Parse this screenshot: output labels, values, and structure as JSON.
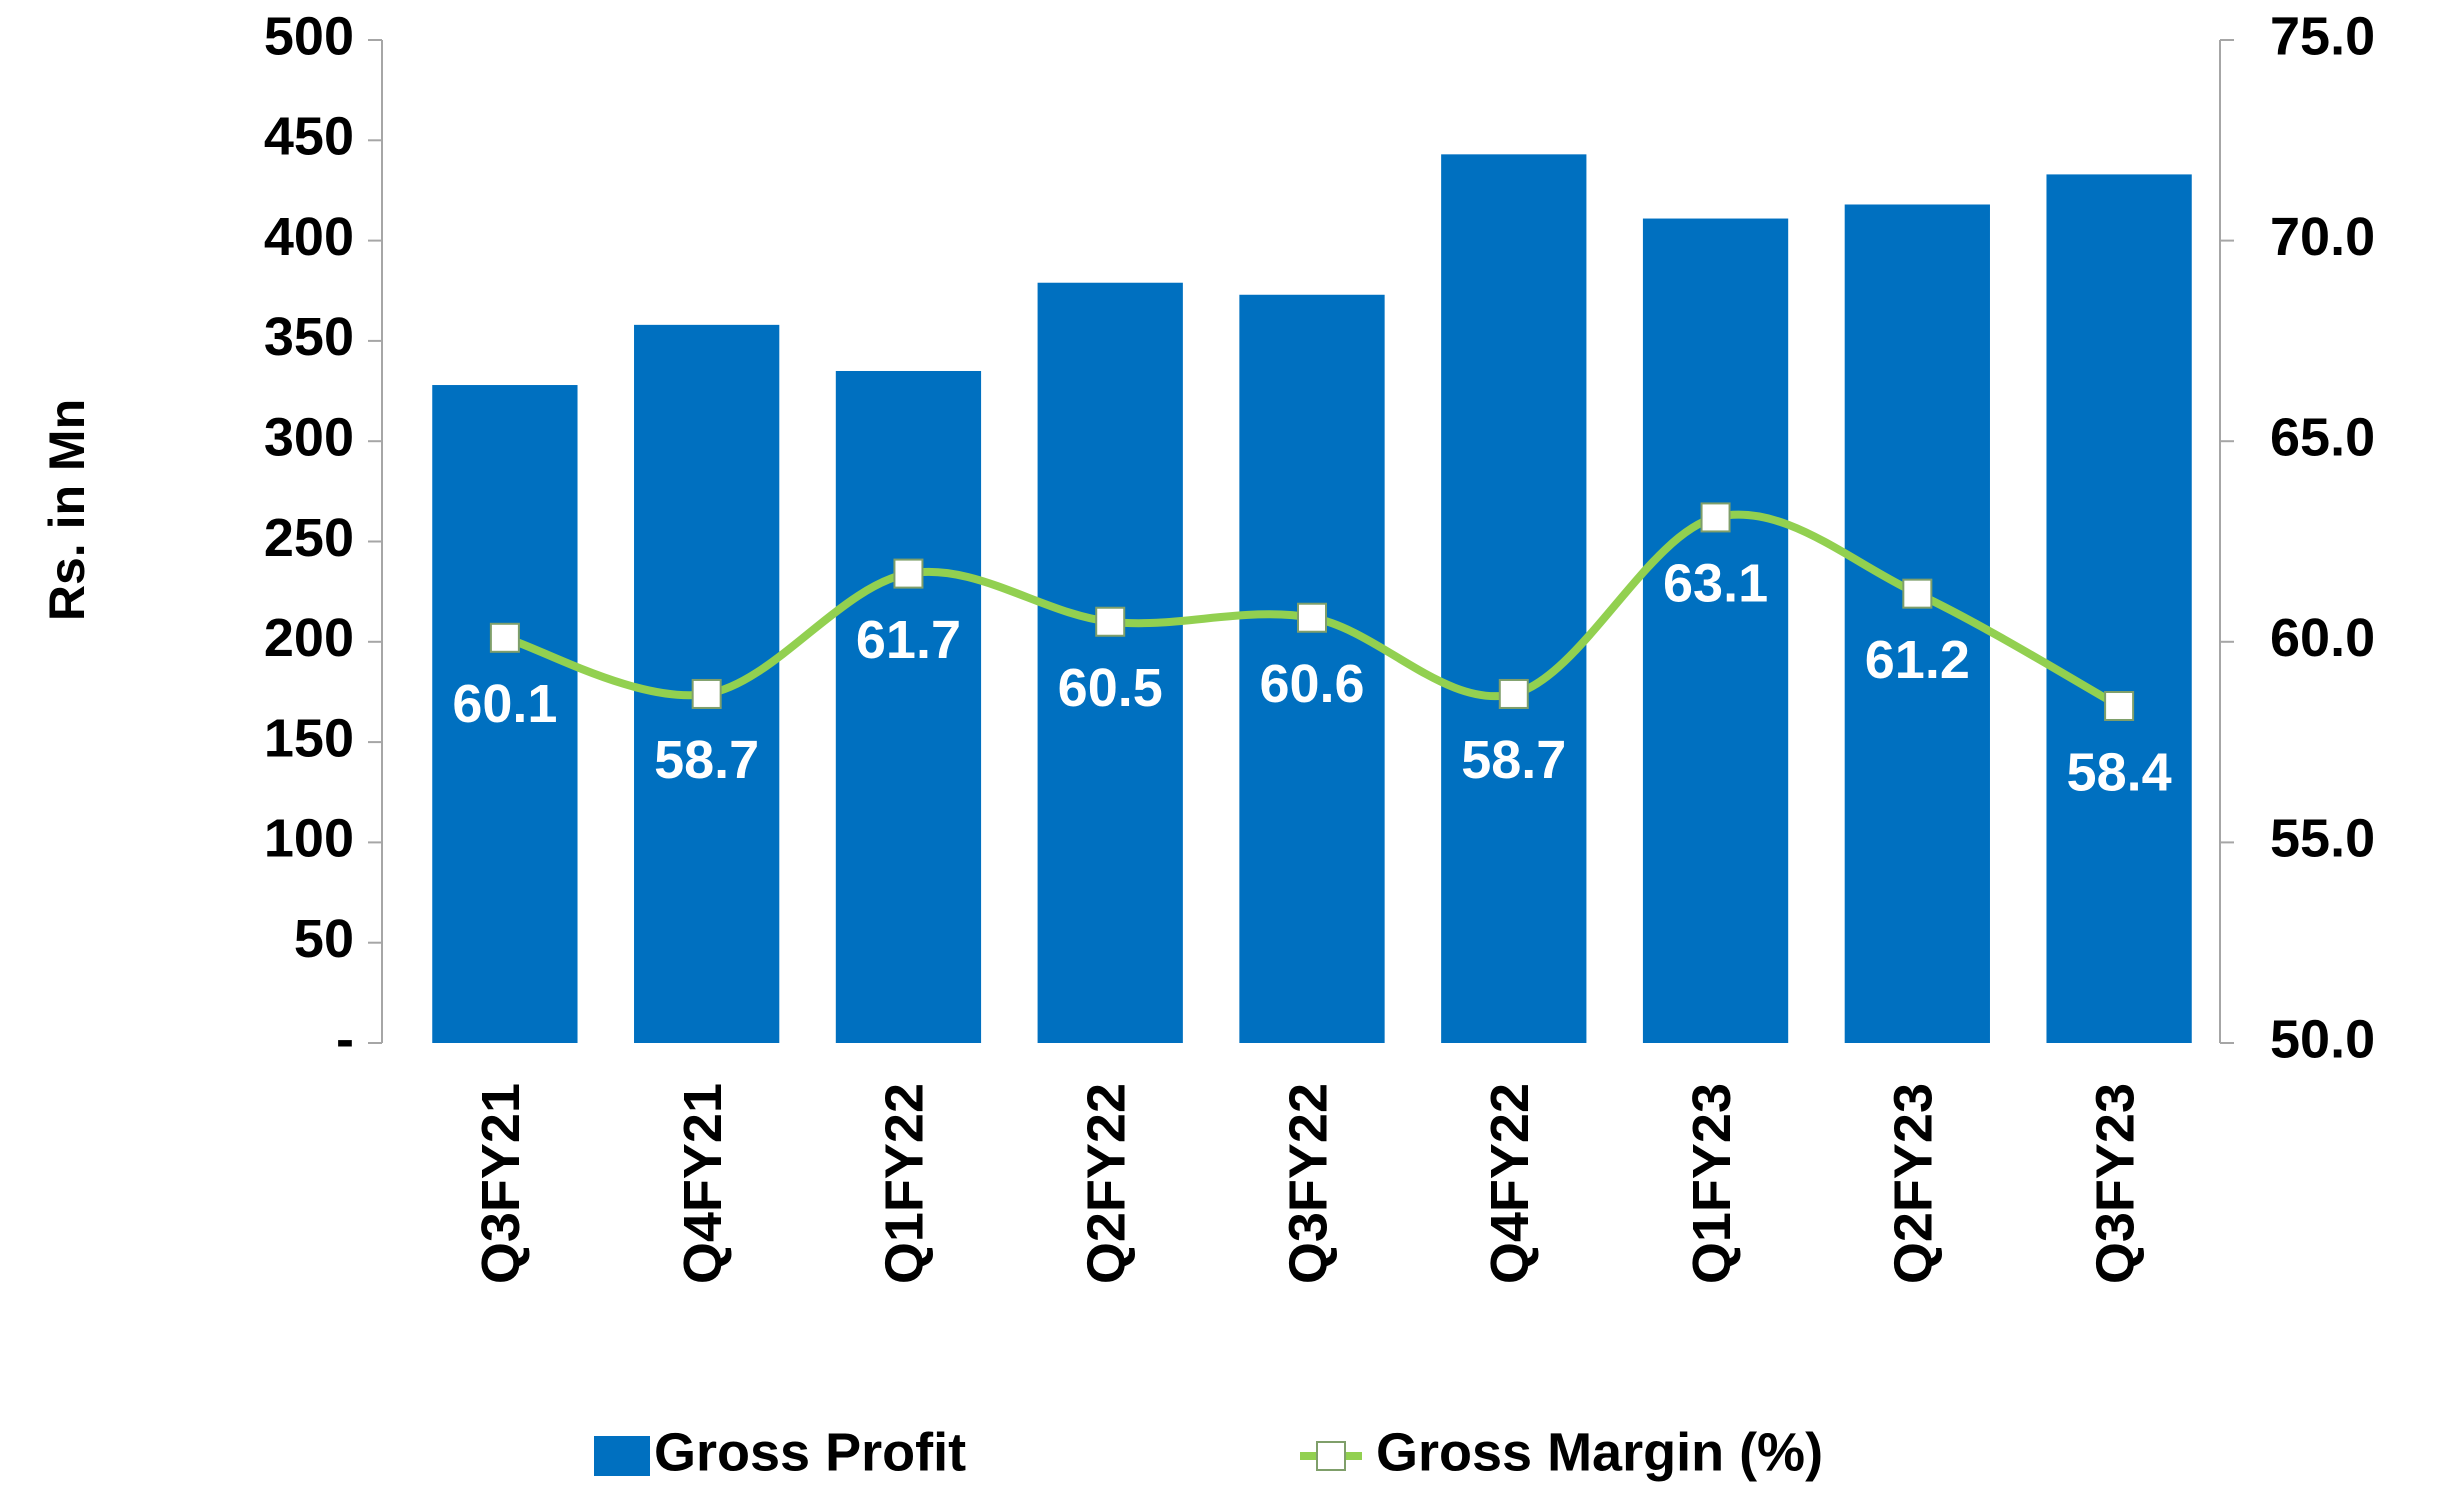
{
  "chart_data": {
    "type": "bar",
    "y_label": "Rs. in Mn",
    "categories": [
      "Q3FY21",
      "Q4FY21",
      "Q1FY22",
      "Q2FY22",
      "Q3FY22",
      "Q4FY22",
      "Q1FY23",
      "Q2FY23",
      "Q3FY23"
    ],
    "series": [
      {
        "name": "Gross Profit",
        "type": "bar",
        "color": "#0070c0",
        "values": [
          328,
          358,
          335,
          379,
          373,
          443,
          411,
          418,
          433
        ]
      },
      {
        "name": "Gross Margin (%)",
        "type": "line",
        "axis": "y2",
        "color": "#92d050",
        "values": [
          60.1,
          58.7,
          61.7,
          60.5,
          60.6,
          58.7,
          63.1,
          61.2,
          58.4
        ]
      }
    ],
    "ylim": [
      0,
      500
    ],
    "yticks": [
      {
        "value": 0,
        "label": "-"
      },
      50,
      100,
      150,
      200,
      250,
      300,
      350,
      400,
      450,
      500
    ],
    "y2lim": [
      50,
      75
    ],
    "y2ticks": [
      {
        "value": 50,
        "label": "50.0"
      },
      {
        "value": 55,
        "label": "55.0"
      },
      {
        "value": 60,
        "label": "60.0"
      },
      {
        "value": 65,
        "label": "65.0"
      },
      {
        "value": 70,
        "label": "70.0"
      },
      {
        "value": 75,
        "label": "75.0"
      }
    ],
    "legend": "bottom"
  }
}
